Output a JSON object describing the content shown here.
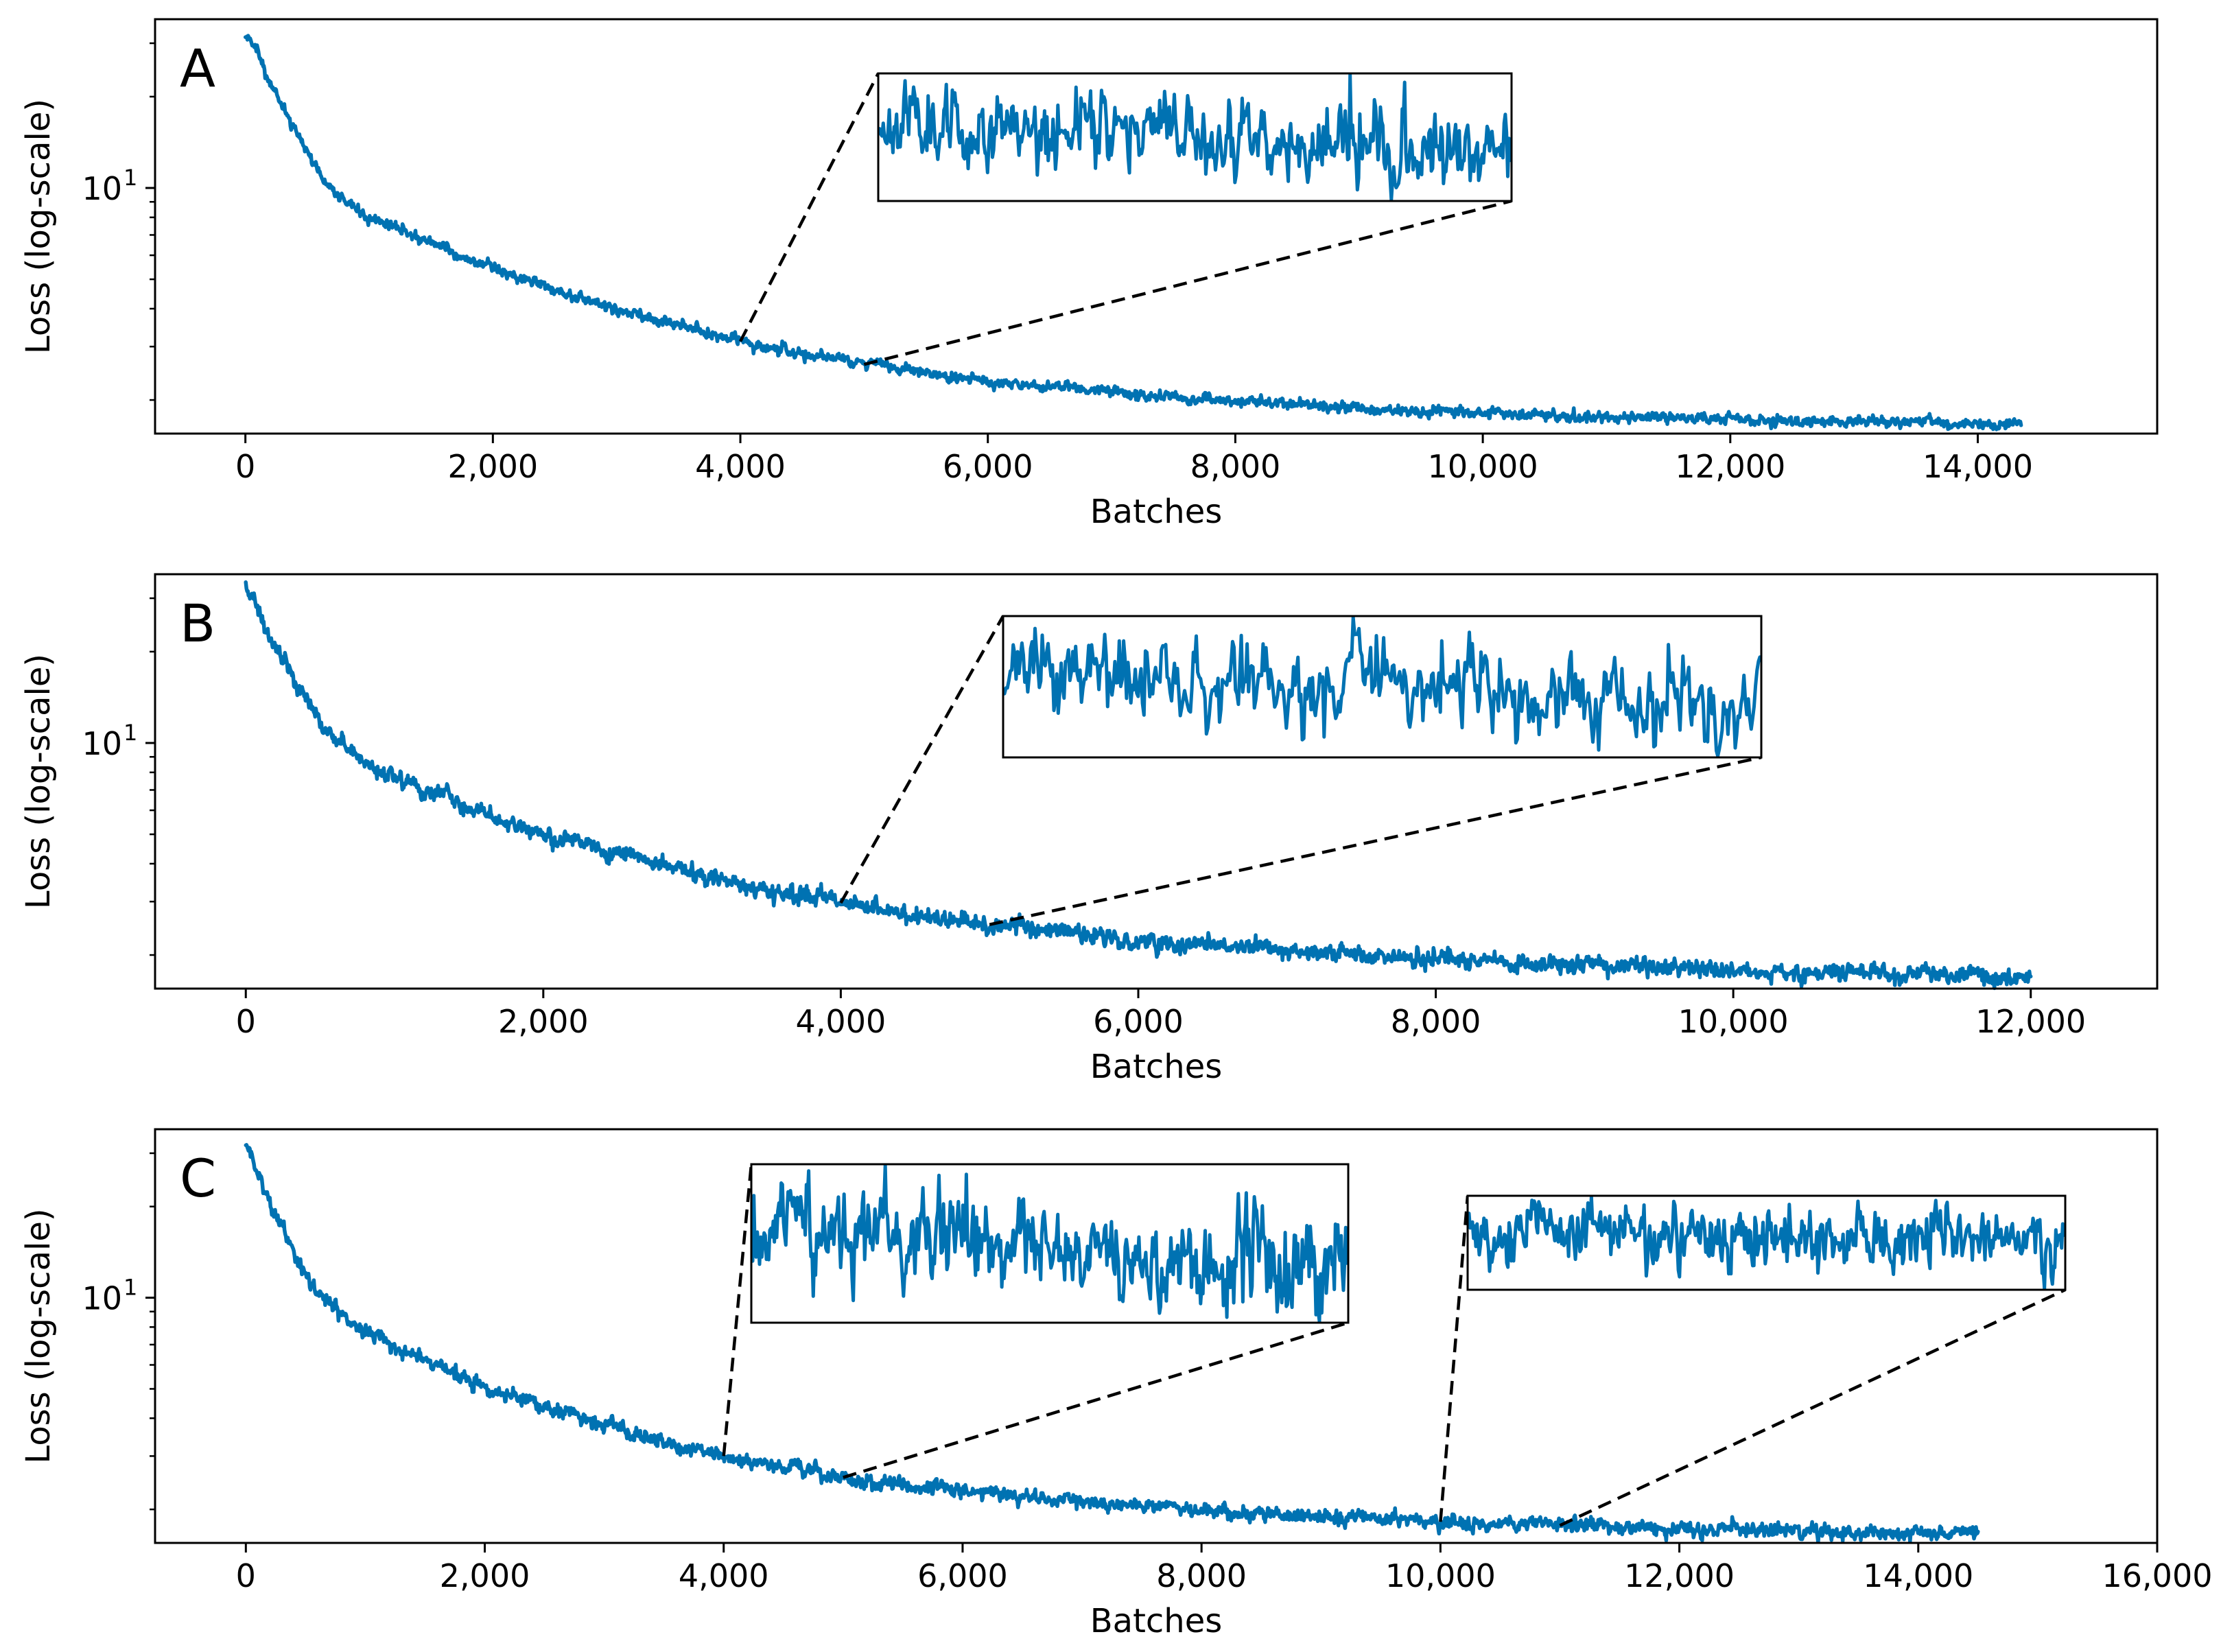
{
  "colors": {
    "series": "#0072b2",
    "axes": "#000000",
    "background": "#ffffff"
  },
  "chart_data": [
    {
      "type": "line",
      "panel_label": "A",
      "xlabel": "Batches",
      "ylabel": "Loss (log-scale)",
      "y_scale": "log",
      "xlim": [
        -730,
        15450
      ],
      "ylim": [
        1.55,
        36
      ],
      "x_ticks": [
        0,
        2000,
        4000,
        6000,
        8000,
        10000,
        12000,
        14000
      ],
      "x_tick_labels": [
        "0",
        "2,000",
        "4,000",
        "6,000",
        "8,000",
        "10,000",
        "12,000",
        "14,000"
      ],
      "y_ticks": [
        10
      ],
      "y_tick_labels": [
        "10"
      ],
      "y_tick_exponents": [
        "1"
      ],
      "series": [
        {
          "name": "loss",
          "x_end": 14350,
          "noise": 0.022,
          "points": [
            [
              0,
              32
            ],
            [
              100,
              27
            ],
            [
              200,
              22.5
            ],
            [
              300,
              18.8
            ],
            [
              400,
              15.5
            ],
            [
              500,
              13
            ],
            [
              600,
              11.2
            ],
            [
              700,
              9.9
            ],
            [
              800,
              9.0
            ],
            [
              1000,
              8.1
            ],
            [
              1500,
              6.6
            ],
            [
              2000,
              5.45
            ],
            [
              2500,
              4.6
            ],
            [
              3000,
              4.0
            ],
            [
              3500,
              3.5
            ],
            [
              4000,
              3.12
            ],
            [
              4500,
              2.85
            ],
            [
              5000,
              2.62
            ],
            [
              6000,
              2.32
            ],
            [
              7000,
              2.12
            ],
            [
              8000,
              1.98
            ],
            [
              9000,
              1.88
            ],
            [
              10000,
              1.8
            ],
            [
              11000,
              1.75
            ],
            [
              12000,
              1.72
            ],
            [
              13000,
              1.69
            ],
            [
              14000,
              1.67
            ],
            [
              14350,
              1.665
            ]
          ]
        }
      ],
      "zoom_insets": [
        {
          "x_from": 4000,
          "x_to": 5000,
          "noise_scale": 4.5,
          "seed": 11
        }
      ]
    },
    {
      "type": "line",
      "panel_label": "B",
      "xlabel": "Batches",
      "ylabel": "Loss (log-scale)",
      "y_scale": "log",
      "xlim": [
        -610,
        12850
      ],
      "ylim": [
        1.55,
        36
      ],
      "x_ticks": [
        0,
        2000,
        4000,
        6000,
        8000,
        10000,
        12000
      ],
      "x_tick_labels": [
        "0",
        "2,000",
        "4,000",
        "6,000",
        "8,000",
        "10,000",
        "12,000"
      ],
      "y_ticks": [
        10
      ],
      "y_tick_labels": [
        "10"
      ],
      "y_tick_exponents": [
        "1"
      ],
      "series": [
        {
          "name": "loss",
          "x_end": 12000,
          "noise": 0.035,
          "points": [
            [
              0,
              32
            ],
            [
              100,
              26
            ],
            [
              200,
              21
            ],
            [
              300,
              17
            ],
            [
              400,
              14
            ],
            [
              500,
              12
            ],
            [
              600,
              10.5
            ],
            [
              700,
              9.4
            ],
            [
              800,
              8.6
            ],
            [
              1000,
              7.6
            ],
            [
              1500,
              6.1
            ],
            [
              2000,
              5.05
            ],
            [
              2500,
              4.3
            ],
            [
              3000,
              3.75
            ],
            [
              3500,
              3.3
            ],
            [
              4000,
              2.97
            ],
            [
              4500,
              2.72
            ],
            [
              5000,
              2.52
            ],
            [
              6000,
              2.25
            ],
            [
              7000,
              2.07
            ],
            [
              8000,
              1.95
            ],
            [
              9000,
              1.85
            ],
            [
              10000,
              1.78
            ],
            [
              11000,
              1.73
            ],
            [
              12000,
              1.7
            ]
          ]
        }
      ],
      "zoom_insets": [
        {
          "x_from": 4000,
          "x_to": 5000,
          "noise_scale": 3.2,
          "seed": 23
        }
      ]
    },
    {
      "type": "line",
      "panel_label": "C",
      "xlabel": "Batches",
      "ylabel": "Loss (log-scale)",
      "y_scale": "log",
      "xlim": [
        -760,
        16000
      ],
      "ylim": [
        1.55,
        36
      ],
      "x_ticks": [
        0,
        2000,
        4000,
        6000,
        8000,
        10000,
        12000,
        14000,
        16000
      ],
      "x_tick_labels": [
        "0",
        "2,000",
        "4,000",
        "6,000",
        "8,000",
        "10,000",
        "12,000",
        "14,000",
        "16,000"
      ],
      "y_ticks": [
        10
      ],
      "y_tick_labels": [
        "10"
      ],
      "y_tick_exponents": [
        "1"
      ],
      "series": [
        {
          "name": "loss",
          "x_end": 14500,
          "noise": 0.03,
          "points": [
            [
              0,
              32
            ],
            [
              100,
              26
            ],
            [
              200,
              21
            ],
            [
              300,
              17.2
            ],
            [
              400,
              14.2
            ],
            [
              500,
              12.1
            ],
            [
              600,
              10.6
            ],
            [
              700,
              9.5
            ],
            [
              800,
              8.7
            ],
            [
              1000,
              7.7
            ],
            [
              1500,
              6.2
            ],
            [
              1600,
              6.0
            ],
            [
              2000,
              5.1
            ],
            [
              2500,
              4.35
            ],
            [
              3000,
              3.8
            ],
            [
              3500,
              3.35
            ],
            [
              4000,
              3.0
            ],
            [
              4500,
              2.75
            ],
            [
              5000,
              2.55
            ],
            [
              6000,
              2.3
            ],
            [
              7000,
              2.12
            ],
            [
              8000,
              1.98
            ],
            [
              9000,
              1.89
            ],
            [
              10000,
              1.82
            ],
            [
              11000,
              1.77
            ],
            [
              12000,
              1.73
            ],
            [
              13000,
              1.7
            ],
            [
              14000,
              1.68
            ],
            [
              14500,
              1.67
            ]
          ]
        }
      ],
      "zoom_insets": [
        {
          "x_from": 4000,
          "x_to": 5000,
          "noise_scale": 3.2,
          "seed": 37
        },
        {
          "x_from": 10000,
          "x_to": 11000,
          "noise_scale": 3.0,
          "seed": 53
        }
      ]
    }
  ]
}
